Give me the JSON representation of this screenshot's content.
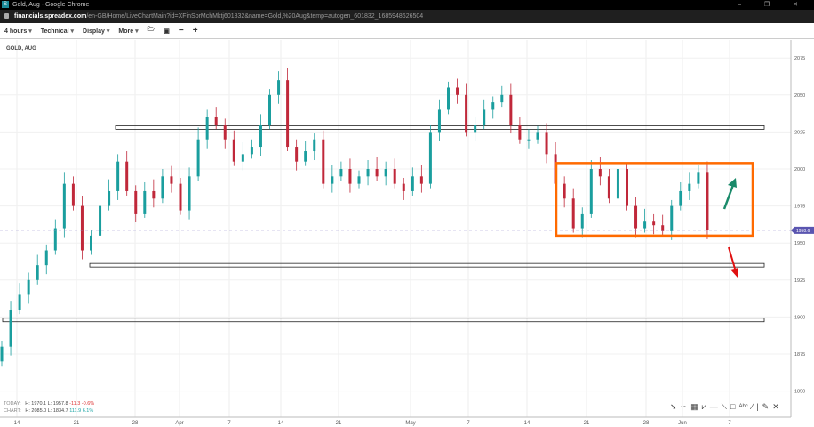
{
  "window": {
    "title": "Gold, Aug - Google Chrome",
    "favicon": "S"
  },
  "url": {
    "host": "financials.spreadex.com",
    "path": "/en-GB/Home/LiveChartMain?id=XFinSprMchMktj601832&name=Gold,%20Aug&temp=autogen_601832_1685948626504"
  },
  "toolbar": {
    "interval": "4 hours",
    "technical": "Technical",
    "display": "Display",
    "more": "More",
    "icons": [
      "folder-open-icon",
      "save-icon",
      "zoom-out-icon",
      "zoom-in-icon"
    ]
  },
  "instrument": "GOLD, AUG",
  "stats": {
    "today_label": "TODAY:",
    "today_h": "H: 1970.1",
    "today_l": "L: 1957.8",
    "today_chg": "-11.3",
    "today_pct": "-0.6%",
    "chart_label": "CHART:",
    "chart_h": "H: 2085.0",
    "chart_l": "L: 1834.7",
    "chart_chg": "111.9",
    "chart_pct": "6.1%"
  },
  "colors": {
    "up": "#1a9e9e",
    "down": "#c0283a",
    "highlight_box": "#ff6a00",
    "arrow_up": "#1a8a6a",
    "arrow_down": "#e01010",
    "price_tag": "#5a55b0"
  },
  "chart_data": {
    "type": "candlestick",
    "y_ticks": [
      2075,
      2050,
      2025,
      2000,
      1975,
      1950,
      1925,
      1900,
      1875,
      1850
    ],
    "ylim": [
      1842,
      2083
    ],
    "x_ticks": [
      "14",
      "21",
      "28",
      "Apr",
      "7",
      "14",
      "21",
      "May",
      "7",
      "14",
      "21",
      "28",
      "Jun",
      "7"
    ],
    "closes": [
      1880,
      1905,
      1915,
      1925,
      1935,
      1945,
      1960,
      1990,
      1975,
      1945,
      1955,
      1975,
      1985,
      2005,
      1985,
      1970,
      1985,
      1980,
      1995,
      1990,
      1972,
      1995,
      2020,
      2035,
      2030,
      2020,
      2005,
      2010,
      2015,
      2030,
      2050,
      2060,
      2015,
      2005,
      2012,
      2020,
      1990,
      1995,
      2000,
      1990,
      1995,
      2000,
      1995,
      2000,
      1990,
      1985,
      1995,
      1990,
      2025,
      2040,
      2055,
      2050,
      2025,
      2030,
      2040,
      2045,
      2050,
      2030,
      2020,
      2020,
      2025,
      2010,
      1990,
      1980,
      1960,
      1970,
      2000,
      1995,
      1980,
      2000,
      1975,
      1960,
      1965,
      1962,
      1958,
      1975,
      1985,
      1990,
      1998,
      1958.6
    ],
    "current_price": "1958.6",
    "levels": [
      2028,
      1935,
      1898
    ],
    "range_box": [
      2004,
      1955
    ]
  }
}
